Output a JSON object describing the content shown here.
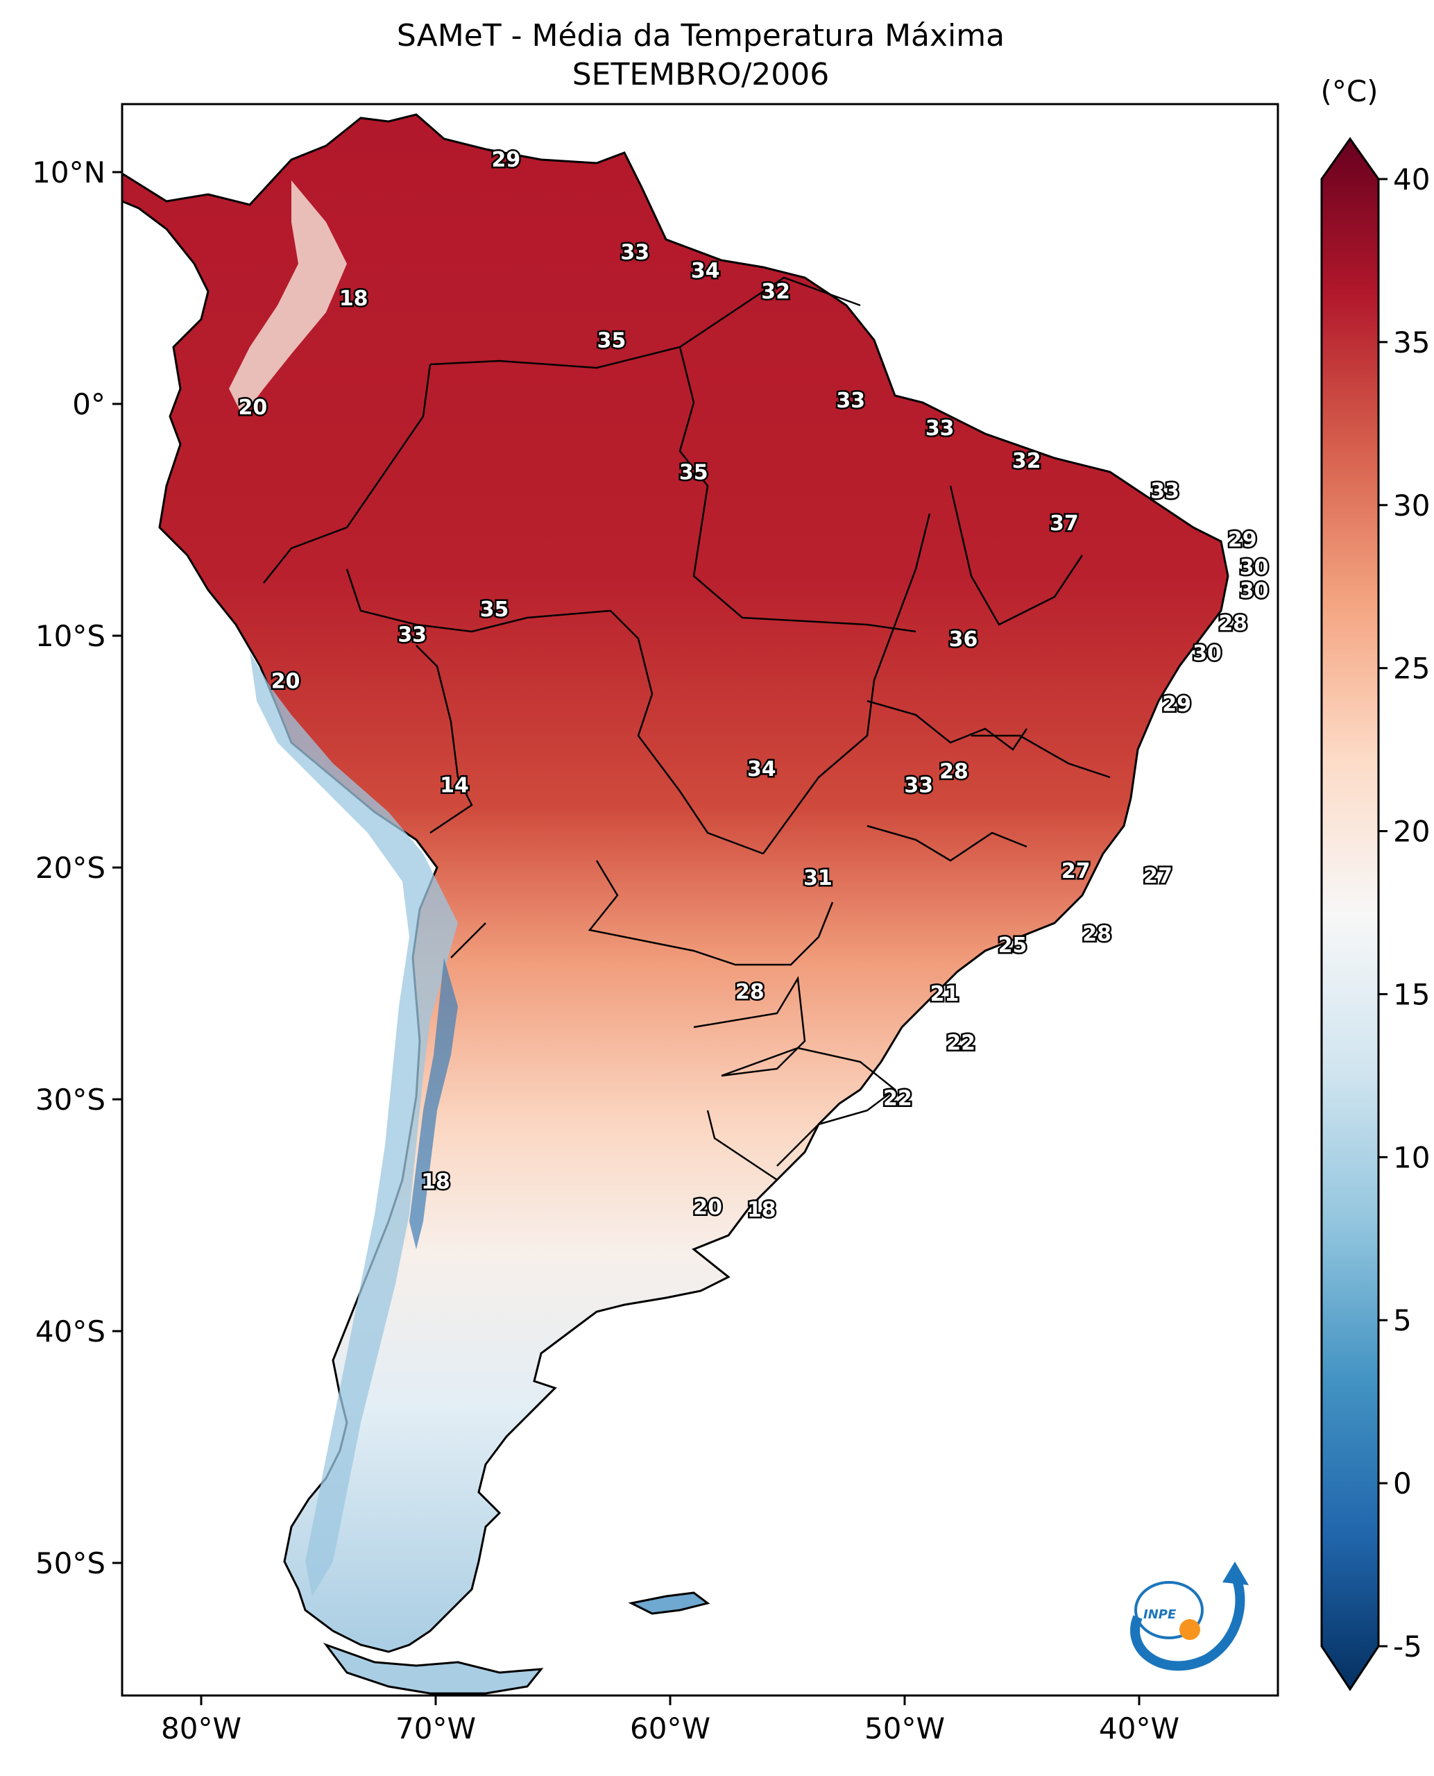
{
  "title": {
    "line1": "SAMeT - Média da Temperatura Máxima",
    "line2": "SETEMBRO/2006"
  },
  "map": {
    "lon_labels": [
      "80°W",
      "70°W",
      "60°W",
      "50°W",
      "40°W"
    ],
    "lat_labels": [
      "10°N",
      "0°",
      "10°S",
      "20°S",
      "30°S",
      "40°S",
      "50°S"
    ],
    "contour_labels": [
      {
        "text": "29",
        "lon": -67.0,
        "lat": 10.5
      },
      {
        "text": "18",
        "lon": -73.5,
        "lat": 4.5
      },
      {
        "text": "20",
        "lon": -77.8,
        "lat": -0.2
      },
      {
        "text": "33",
        "lon": -61.5,
        "lat": 6.5
      },
      {
        "text": "34",
        "lon": -58.5,
        "lat": 5.7
      },
      {
        "text": "32",
        "lon": -55.5,
        "lat": 4.8
      },
      {
        "text": "35",
        "lon": -62.5,
        "lat": 2.7
      },
      {
        "text": "33",
        "lon": -52.3,
        "lat": 0.1
      },
      {
        "text": "33",
        "lon": -48.5,
        "lat": -1.1
      },
      {
        "text": "32",
        "lon": -44.8,
        "lat": -2.5
      },
      {
        "text": "33",
        "lon": -38.9,
        "lat": -3.8
      },
      {
        "text": "35",
        "lon": -59.0,
        "lat": -3.0
      },
      {
        "text": "37",
        "lon": -43.2,
        "lat": -5.2
      },
      {
        "text": "29",
        "lon": -35.6,
        "lat": -5.9
      },
      {
        "text": "30",
        "lon": -35.1,
        "lat": -7.1
      },
      {
        "text": "30",
        "lon": -35.1,
        "lat": -8.1
      },
      {
        "text": "28",
        "lon": -36.0,
        "lat": -9.5
      },
      {
        "text": "35",
        "lon": -67.5,
        "lat": -8.9
      },
      {
        "text": "33",
        "lon": -71.0,
        "lat": -10.0
      },
      {
        "text": "36",
        "lon": -47.5,
        "lat": -10.2
      },
      {
        "text": "30",
        "lon": -37.1,
        "lat": -10.8
      },
      {
        "text": "20",
        "lon": -76.4,
        "lat": -12.0
      },
      {
        "text": "29",
        "lon": -38.4,
        "lat": -13.0
      },
      {
        "text": "14",
        "lon": -69.2,
        "lat": -16.5
      },
      {
        "text": "34",
        "lon": -56.1,
        "lat": -15.8
      },
      {
        "text": "28",
        "lon": -47.9,
        "lat": -15.9
      },
      {
        "text": "33",
        "lon": -49.4,
        "lat": -16.5
      },
      {
        "text": "27",
        "lon": -42.7,
        "lat": -20.2
      },
      {
        "text": "27",
        "lon": -39.2,
        "lat": -20.4
      },
      {
        "text": "31",
        "lon": -53.7,
        "lat": -20.5
      },
      {
        "text": "28",
        "lon": -41.8,
        "lat": -22.9
      },
      {
        "text": "25",
        "lon": -45.4,
        "lat": -23.4
      },
      {
        "text": "28",
        "lon": -56.6,
        "lat": -25.4
      },
      {
        "text": "21",
        "lon": -48.3,
        "lat": -25.5
      },
      {
        "text": "22",
        "lon": -47.6,
        "lat": -27.6
      },
      {
        "text": "22",
        "lon": -50.3,
        "lat": -30.0
      },
      {
        "text": "18",
        "lon": -70.0,
        "lat": -33.6
      },
      {
        "text": "20",
        "lon": -58.4,
        "lat": -34.7
      },
      {
        "text": "18",
        "lon": -56.1,
        "lat": -34.8
      }
    ]
  },
  "colorbar": {
    "unit": "(°C)",
    "ticks": [
      "40",
      "35",
      "30",
      "25",
      "20",
      "15",
      "10",
      "5",
      "0",
      "-5"
    ],
    "min": -5,
    "max": 40,
    "colors": [
      "#053061",
      "#2166ac",
      "#4393c3",
      "#92c5de",
      "#d1e5f0",
      "#f7f7f7",
      "#fddbc7",
      "#f4a582",
      "#d6604d",
      "#b2182b",
      "#67001f"
    ]
  },
  "logo": {
    "text": "INPE",
    "colors": [
      "#1b75bc",
      "#f7941d"
    ]
  }
}
